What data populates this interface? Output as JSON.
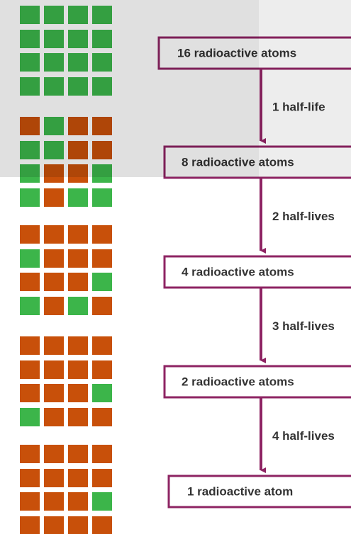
{
  "atom_grids": [
    [
      "GGGG",
      "GGGG",
      "GGGG",
      "GGGG"
    ],
    [
      "OGOO",
      "GGOO",
      "GOOG",
      "GOGG"
    ],
    [
      "OOOO",
      "GOOO",
      "OOOG",
      "GOGO"
    ],
    [
      "OOOO",
      "OOOO",
      "OOOG",
      "GOOO"
    ],
    [
      "OOOO",
      "OOOO",
      "OOOG",
      "OOOO"
    ]
  ],
  "steps": [
    {
      "label": "16 radioactive atoms"
    },
    {
      "label": "8 radioactive atoms",
      "arrow_label": "1 half-life"
    },
    {
      "label": "4 radioactive atoms",
      "arrow_label": "2 half-lives"
    },
    {
      "label": "2 radioactive atoms",
      "arrow_label": "3 half-lives"
    },
    {
      "label": "1 radioactive atom",
      "arrow_label": "4 half-lives"
    }
  ]
}
